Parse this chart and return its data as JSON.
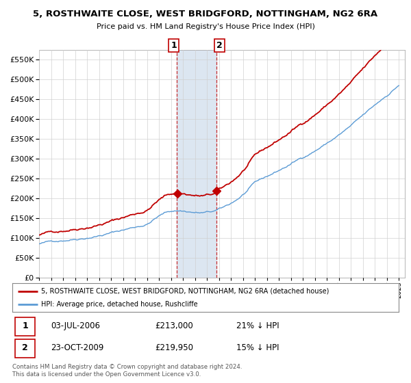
{
  "title": "5, ROSTHWAITE CLOSE, WEST BRIDGFORD, NOTTINGHAM, NG2 6RA",
  "subtitle": "Price paid vs. HM Land Registry's House Price Index (HPI)",
  "legend_line1": "5, ROSTHWAITE CLOSE, WEST BRIDGFORD, NOTTINGHAM, NG2 6RA (detached house)",
  "legend_line2": "HPI: Average price, detached house, Rushcliffe",
  "annotation1": {
    "label": "1",
    "date": "03-JUL-2006",
    "price": "£213,000",
    "pct": "21% ↓ HPI",
    "x_year": 2006.5,
    "y_value": 213000
  },
  "annotation2": {
    "label": "2",
    "date": "23-OCT-2009",
    "price": "£219,950",
    "pct": "15% ↓ HPI",
    "x_year": 2009.8,
    "y_value": 219950
  },
  "footer1": "Contains HM Land Registry data © Crown copyright and database right 2024.",
  "footer2": "This data is licensed under the Open Government Licence v3.0.",
  "hpi_color": "#5b9bd5",
  "price_color": "#c00000",
  "marker_color": "#c00000",
  "highlight_color": "#dce6f1",
  "grid_color": "#d0d0d0",
  "bg_color": "#ffffff",
  "ylim": [
    0,
    575000
  ],
  "xlim_start": 1995.0,
  "xlim_end": 2025.5
}
